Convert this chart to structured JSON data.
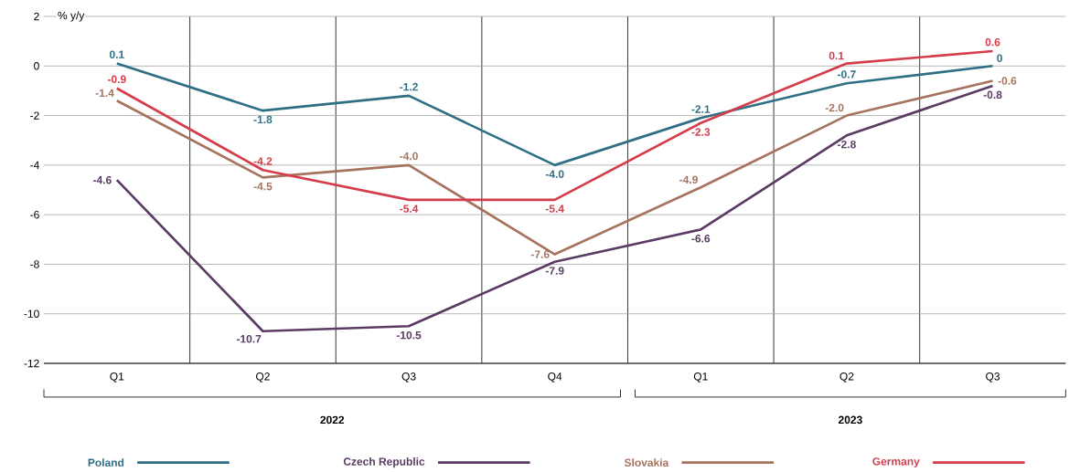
{
  "chart_data": {
    "type": "line",
    "ylabel": "% y/y",
    "categories": [
      "Q1",
      "Q2",
      "Q3",
      "Q4",
      "Q1",
      "Q2",
      "Q3"
    ],
    "ylim": [
      -12,
      2
    ],
    "yticks": [
      -12,
      -10,
      -8,
      -6,
      -4,
      -2,
      0,
      2
    ],
    "grid": true,
    "legend": "bottom",
    "line_style": "solid",
    "marker": "none",
    "annotations": [
      "2022",
      "2023"
    ],
    "series": [
      {
        "name": "Poland",
        "color": "#2f6f86",
        "values": [
          0.1,
          -1.8,
          -1.2,
          -4.0,
          -2.1,
          -0.7,
          0
        ],
        "value_labels": [
          "0.1",
          "-1.8",
          "-1.2",
          "-4.0",
          "-2.1",
          "-0.7",
          "0"
        ]
      },
      {
        "name": "Czech Republic",
        "color": "#5a3b63",
        "values": [
          -4.6,
          -10.7,
          -10.5,
          -7.9,
          -6.6,
          -2.8,
          -0.8
        ],
        "value_labels": [
          "-4.6",
          "-10.7",
          "-10.5",
          "-7.9",
          "-6.6",
          "-2.8",
          "-0.8"
        ]
      },
      {
        "name": "Slovakia",
        "color": "#a5735e",
        "values": [
          -1.4,
          -4.5,
          -4.0,
          -7.6,
          -4.9,
          -2.0,
          -0.6
        ],
        "value_labels": [
          "-1.4",
          "-4.5",
          "-4.0",
          "-7.6",
          "-4.9",
          "-2.0",
          "-0.6"
        ]
      },
      {
        "name": "Germany",
        "color": "#d43d4b",
        "values": [
          -0.9,
          -4.2,
          -5.4,
          -5.4,
          -2.3,
          0.1,
          0.6
        ],
        "value_labels": [
          "-0.9",
          "-4.2",
          "-5.4",
          "-5.4",
          "-2.3",
          "0.1",
          "0.6"
        ]
      }
    ]
  }
}
